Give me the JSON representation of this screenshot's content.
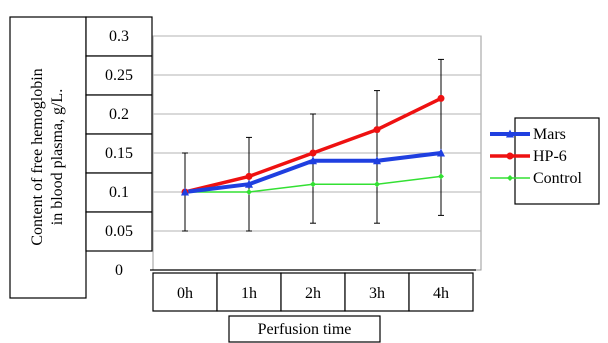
{
  "chart_data": {
    "type": "line",
    "title": "",
    "ylabel": "Content of free hemoglobin in blood plasma, g/L.",
    "ylabel_lines": [
      "Content of free hemoglobin",
      "in blood plasma, g/L."
    ],
    "xlabel": "Perfusion time",
    "categories": [
      "0h",
      "1h",
      "2h",
      "3h",
      "4h"
    ],
    "ylim": [
      0,
      0.3
    ],
    "yticks": [
      "0.3",
      "0.25",
      "0.2",
      "0.15",
      "0.1",
      "0.05",
      "0"
    ],
    "ytick_values": [
      0.3,
      0.25,
      0.2,
      0.15,
      0.1,
      0.05,
      0
    ],
    "grid": "horizontal",
    "legend_position": "right",
    "series": [
      {
        "name": "Mars",
        "values": [
          0.1,
          0.11,
          0.14,
          0.14,
          0.15
        ],
        "color": "#1f3fe0",
        "marker": "triangle",
        "error_low": [
          0.05,
          0.05,
          0.06,
          0.06,
          0.07
        ],
        "error_high": [
          0.15,
          0.17,
          0.2,
          0.23,
          0.27
        ]
      },
      {
        "name": "HP-6",
        "values": [
          0.1,
          0.12,
          0.15,
          0.18,
          0.22
        ],
        "color": "#ee1111",
        "marker": "circle"
      },
      {
        "name": "Control",
        "values": [
          0.1,
          0.1,
          0.11,
          0.11,
          0.12
        ],
        "color": "#33e033",
        "marker": "diamond"
      }
    ]
  }
}
